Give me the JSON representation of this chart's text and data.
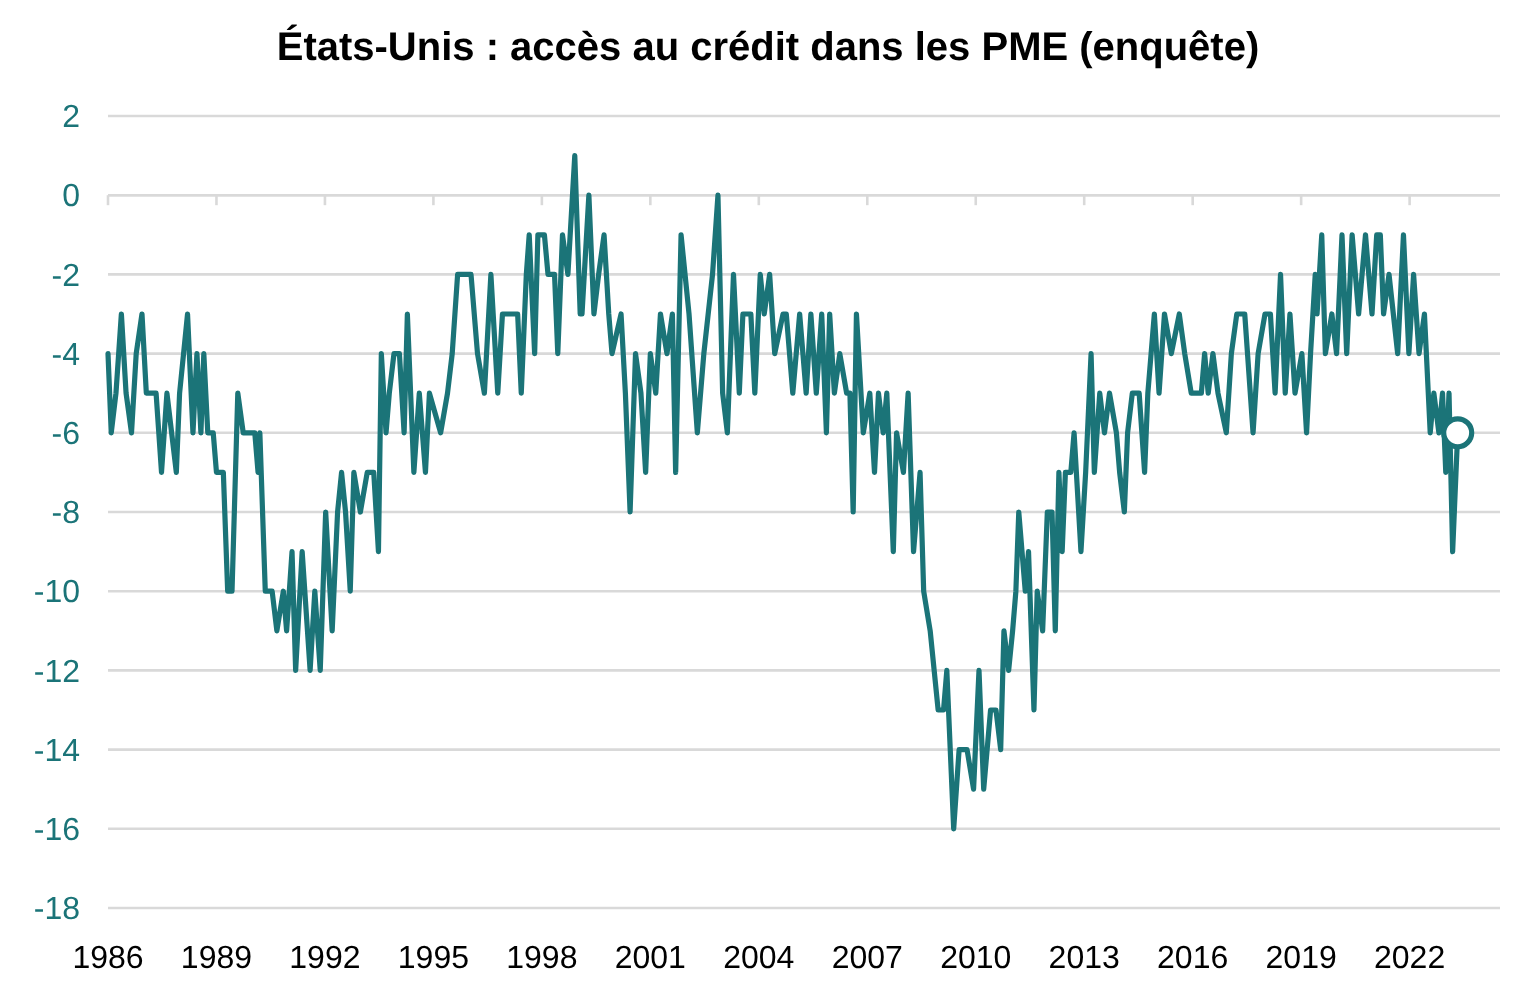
{
  "chart_data": {
    "type": "line",
    "title": "États-Unis : accès au crédit dans les PME (enquête)",
    "xlim": [
      1986,
      2024.5
    ],
    "xticks": [
      1986,
      1989,
      1992,
      1995,
      1998,
      2001,
      2004,
      2007,
      2010,
      2013,
      2016,
      2019,
      2022
    ],
    "ylim": [
      -18,
      2
    ],
    "yticks": [
      -18,
      -16,
      -14,
      -12,
      -10,
      -8,
      -6,
      -4,
      -2,
      0,
      2
    ],
    "grid": "y",
    "line_style": "solid",
    "series": [
      {
        "color": "#1b7478",
        "marker": "none",
        "x": [
          1986.0,
          1986.09,
          1986.22,
          1986.37,
          1986.5,
          1986.65,
          1986.78,
          1986.94,
          1987.06,
          1987.33,
          1987.48,
          1987.63,
          1987.89,
          1987.98,
          1988.2,
          1988.35,
          1988.46,
          1988.57,
          1988.65,
          1988.76,
          1988.91,
          1989.0,
          1989.19,
          1989.31,
          1989.43,
          1989.59,
          1989.74,
          1990.06,
          1990.15,
          1990.2,
          1990.35,
          1990.54,
          1990.67,
          1990.85,
          1990.94,
          1991.09,
          1991.19,
          1991.37,
          1991.59,
          1991.72,
          1991.87,
          1992.02,
          1992.2,
          1992.35,
          1992.46,
          1992.57,
          1992.7,
          1992.8,
          1992.98,
          1993.17,
          1993.35,
          1993.48,
          1993.56,
          1993.69,
          1993.78,
          1993.91,
          1994.06,
          1994.19,
          1994.28,
          1994.46,
          1994.61,
          1994.78,
          1994.89,
          1995.2,
          1995.39,
          1995.52,
          1995.67,
          1995.85,
          1996.04,
          1996.22,
          1996.41,
          1996.59,
          1996.78,
          1996.91,
          1997.15,
          1997.33,
          1997.43,
          1997.57,
          1997.65,
          1997.8,
          1997.89,
          1998.07,
          1998.17,
          1998.35,
          1998.44,
          1998.57,
          1998.72,
          1998.91,
          1999.06,
          1999.11,
          1999.3,
          1999.44,
          1999.57,
          1999.72,
          1999.85,
          1999.94,
          2000.19,
          2000.31,
          2000.44,
          2000.59,
          2000.74,
          2000.87,
          2001.0,
          2001.15,
          2001.28,
          2001.46,
          2001.61,
          2001.7,
          2001.85,
          2002.07,
          2002.3,
          2002.48,
          2002.72,
          2002.87,
          2003.0,
          2003.13,
          2003.3,
          2003.46,
          2003.56,
          2003.78,
          2003.89,
          2004.04,
          2004.15,
          2004.3,
          2004.44,
          2004.67,
          2004.76,
          2004.94,
          2005.13,
          2005.31,
          2005.44,
          2005.59,
          2005.74,
          2005.87,
          2005.96,
          2006.09,
          2006.24,
          2006.43,
          2006.52,
          2006.61,
          2006.7,
          2006.89,
          2007.07,
          2007.2,
          2007.31,
          2007.44,
          2007.54,
          2007.72,
          2007.81,
          2008.0,
          2008.13,
          2008.28,
          2008.46,
          2008.56,
          2008.74,
          2008.96,
          2009.11,
          2009.2,
          2009.39,
          2009.54,
          2009.76,
          2009.94,
          2010.09,
          2010.22,
          2010.41,
          2010.56,
          2010.69,
          2010.78,
          2010.91,
          2011.02,
          2011.11,
          2011.19,
          2011.37,
          2011.46,
          2011.61,
          2011.7,
          2011.85,
          2011.98,
          2012.11,
          2012.2,
          2012.3,
          2012.39,
          2012.48,
          2012.63,
          2012.72,
          2012.91,
          2013.04,
          2013.19,
          2013.28,
          2013.43,
          2013.56,
          2013.7,
          2013.89,
          2013.98,
          2014.11,
          2014.2,
          2014.33,
          2014.52,
          2014.67,
          2014.76,
          2014.85,
          2014.94,
          2015.07,
          2015.22,
          2015.41,
          2015.63,
          2015.78,
          2015.96,
          2016.24,
          2016.33,
          2016.43,
          2016.56,
          2016.7,
          2016.93,
          2017.07,
          2017.22,
          2017.44,
          2017.67,
          2017.81,
          2018.0,
          2018.15,
          2018.28,
          2018.43,
          2018.56,
          2018.69,
          2018.83,
          2019.02,
          2019.15,
          2019.26,
          2019.39,
          2019.44,
          2019.57,
          2019.67,
          2019.85,
          2019.98,
          2020.13,
          2020.26,
          2020.41,
          2020.59,
          2020.78,
          2020.96,
          2021.09,
          2021.19,
          2021.28,
          2021.43,
          2021.67,
          2021.83,
          2021.98,
          2022.11,
          2022.26,
          2022.41,
          2022.57,
          2022.67,
          2022.81,
          2022.91,
          2023.0,
          2023.09,
          2023.19,
          2023.33
        ],
        "values": [
          -4,
          -6,
          -5,
          -3,
          -5,
          -6,
          -4,
          -3,
          -5,
          -5,
          -7,
          -5,
          -7,
          -5,
          -3,
          -6,
          -4,
          -6,
          -4,
          -6,
          -6,
          -7,
          -7,
          -10,
          -10,
          -5,
          -6,
          -6,
          -7,
          -6,
          -10,
          -10,
          -11,
          -10,
          -11,
          -9,
          -12,
          -9,
          -12,
          -10,
          -12,
          -8,
          -11,
          -8,
          -7,
          -8,
          -10,
          -7,
          -8,
          -7,
          -7,
          -9,
          -4,
          -6,
          -5,
          -4,
          -4,
          -6,
          -3,
          -7,
          -5,
          -7,
          -5,
          -6,
          -5,
          -4,
          -2,
          -2,
          -2,
          -4,
          -5,
          -2,
          -5,
          -3,
          -3,
          -3,
          -5,
          -2,
          -1,
          -4,
          -1,
          -1,
          -2,
          -2,
          -4,
          -1,
          -2,
          1,
          -3,
          -3,
          0,
          -3,
          -2,
          -1,
          -3,
          -4,
          -3,
          -5,
          -8,
          -4,
          -5,
          -7,
          -4,
          -5,
          -3,
          -4,
          -3,
          -7,
          -1,
          -3,
          -6,
          -4,
          -2,
          0,
          -5,
          -6,
          -2,
          -5,
          -3,
          -3,
          -5,
          -2,
          -3,
          -2,
          -4,
          -3,
          -3,
          -5,
          -3,
          -5,
          -3,
          -5,
          -3,
          -6,
          -3,
          -5,
          -4,
          -5,
          -5,
          -8,
          -3,
          -6,
          -5,
          -7,
          -5,
          -6,
          -5,
          -9,
          -6,
          -7,
          -5,
          -9,
          -7,
          -10,
          -11,
          -13,
          -13,
          -12,
          -16,
          -14,
          -14,
          -15,
          -12,
          -15,
          -13,
          -13,
          -14,
          -11,
          -12,
          -11,
          -10,
          -8,
          -10,
          -9,
          -13,
          -10,
          -11,
          -8,
          -8,
          -11,
          -7,
          -9,
          -7,
          -7,
          -6,
          -9,
          -7,
          -4,
          -7,
          -5,
          -6,
          -5,
          -6,
          -7,
          -8,
          -6,
          -5,
          -5,
          -7,
          -5,
          -4,
          -3,
          -5,
          -3,
          -4,
          -3,
          -4,
          -5,
          -5,
          -4,
          -5,
          -4,
          -5,
          -6,
          -4,
          -3,
          -3,
          -6,
          -4,
          -3,
          -3,
          -5,
          -2,
          -5,
          -3,
          -5,
          -4,
          -6,
          -4,
          -2,
          -3,
          -1,
          -4,
          -3,
          -4,
          -1,
          -4,
          -1,
          -3,
          -1,
          -3,
          -1,
          -1,
          -3,
          -2,
          -4,
          -1,
          -4,
          -2,
          -4,
          -3,
          -6,
          -5,
          -6,
          -5,
          -7,
          -5,
          -9,
          -6
        ]
      },
      {
        "type": "scatter",
        "color": "#1b7478",
        "marker": "circle",
        "x": [
          2023.33
        ],
        "values": [
          -6
        ]
      }
    ]
  }
}
